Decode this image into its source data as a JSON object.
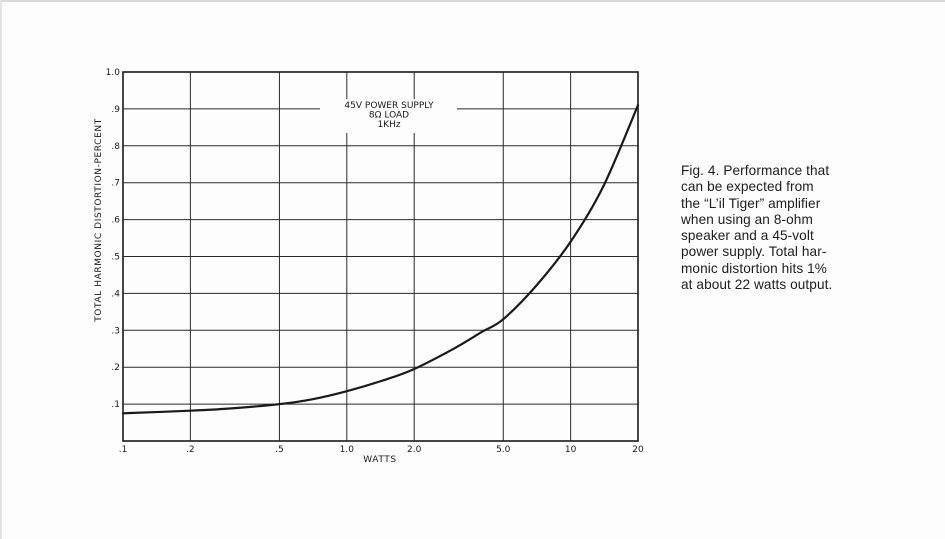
{
  "chart_data": {
    "type": "line",
    "xlabel": "WATTS",
    "ylabel": "TOTAL HARMONIC DISTORTION-PERCENT",
    "x_scale": "log",
    "xlim": [
      0.1,
      20
    ],
    "ylim": [
      0,
      1.0
    ],
    "grid": true,
    "x_ticks": [
      {
        "value": 0.1,
        "label": ".1"
      },
      {
        "value": 0.2,
        "label": ".2"
      },
      {
        "value": 0.5,
        "label": ".5"
      },
      {
        "value": 1.0,
        "label": "1.0"
      },
      {
        "value": 2.0,
        "label": "2.0"
      },
      {
        "value": 5.0,
        "label": "5.0"
      },
      {
        "value": 10,
        "label": "10"
      },
      {
        "value": 20,
        "label": "20"
      }
    ],
    "y_ticks": [
      {
        "value": 0.1,
        "label": ".1"
      },
      {
        "value": 0.2,
        "label": ".2"
      },
      {
        "value": 0.3,
        "label": ".3"
      },
      {
        "value": 0.4,
        "label": ".4"
      },
      {
        "value": 0.5,
        "label": ".5"
      },
      {
        "value": 0.6,
        "label": ".6"
      },
      {
        "value": 0.7,
        "label": ".7"
      },
      {
        "value": 0.8,
        "label": ".8"
      },
      {
        "value": 0.9,
        "label": ".9"
      },
      {
        "value": 1.0,
        "label": "1.0"
      }
    ],
    "annotation": [
      "45V POWER SUPPLY",
      "8Ω LOAD",
      "1KHz"
    ],
    "series": [
      {
        "x": [
          0.1,
          0.2,
          0.3,
          0.5,
          0.7,
          1.0,
          1.5,
          2.0,
          3.0,
          4.0,
          5.0,
          7.0,
          10,
          14,
          20
        ],
        "y": [
          0.075,
          0.082,
          0.088,
          0.1,
          0.113,
          0.135,
          0.167,
          0.195,
          0.25,
          0.295,
          0.33,
          0.42,
          0.54,
          0.69,
          0.91
        ]
      }
    ]
  },
  "caption": "Fig. 4. Performance that\ncan be expected from\nthe “L’il Tiger” amplifier\nwhen using an 8-ohm\nspeaker and a 45-volt\npower supply. Total har-\nmonic distortion hits 1%\nat about 22 watts output.",
  "colors": {
    "ink": "#1a1a1a",
    "grid": "#2a2a2a",
    "paper": "#fdfdfd"
  }
}
